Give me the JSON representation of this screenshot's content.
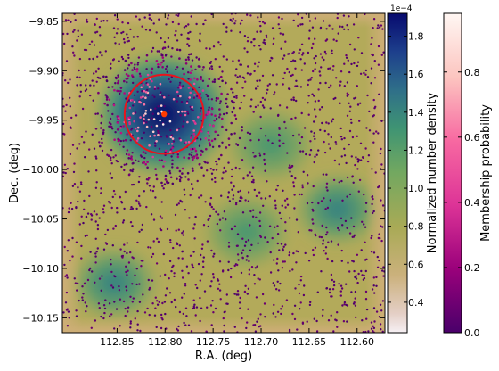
{
  "chart_data": {
    "type": "scatter",
    "xlabel": "R.A. (deg)",
    "ylabel": "Dec. (deg)",
    "xlim": [
      112.907,
      112.571
    ],
    "ylim": [
      -10.165,
      -9.842
    ],
    "x_inverted": true,
    "xticks": [
      "112.85",
      "112.80",
      "112.75",
      "112.70",
      "112.65",
      "112.60"
    ],
    "yticks": [
      "-9.85",
      "-9.90",
      "-9.95",
      "-10.00",
      "-10.05",
      "-10.10",
      "-10.15"
    ],
    "density_colorbar": {
      "label": "Normalized number density",
      "offset_label": "1e−4",
      "ticks": [
        "0.4",
        "0.6",
        "0.8",
        "1.0",
        "1.2",
        "1.4",
        "1.6",
        "1.8"
      ],
      "range": [
        0.24,
        1.92
      ],
      "colormap": "gist_earth_r"
    },
    "membership_colorbar": {
      "label": "Membership probability",
      "ticks": [
        "0.0",
        "0.2",
        "0.4",
        "0.6",
        "0.8"
      ],
      "range": [
        0.0,
        0.98
      ],
      "colormap": "RdPu_r"
    },
    "cluster_center": {
      "ra": 112.801,
      "dec": -9.944
    },
    "cluster_circle_radius_deg": 0.04,
    "circle_color": "#e8141c",
    "center_marker_color": "#ff3b00",
    "density_peaks": [
      {
        "ra": 112.802,
        "dec": -9.944,
        "level": 1.9
      },
      {
        "ra": 112.853,
        "dec": -10.115,
        "level": 1.3
      },
      {
        "ra": 112.715,
        "dec": -10.063,
        "level": 1.15
      },
      {
        "ra": 112.62,
        "dec": -10.04,
        "level": 1.25
      },
      {
        "ra": 112.69,
        "dec": -9.975,
        "level": 1.1
      }
    ]
  }
}
